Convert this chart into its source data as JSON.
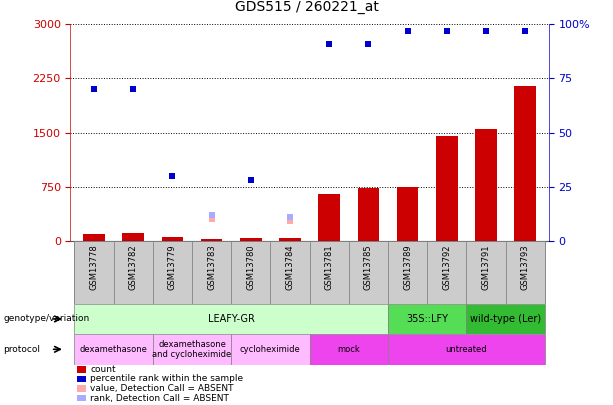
{
  "title": "GDS515 / 260221_at",
  "samples": [
    "GSM13778",
    "GSM13782",
    "GSM13779",
    "GSM13783",
    "GSM13780",
    "GSM13784",
    "GSM13781",
    "GSM13785",
    "GSM13789",
    "GSM13792",
    "GSM13791",
    "GSM13793"
  ],
  "count_values": [
    90,
    110,
    55,
    25,
    45,
    40,
    650,
    730,
    750,
    1450,
    1550,
    2150
  ],
  "percentile_values": [
    70,
    70,
    30,
    null,
    28,
    null,
    91,
    91,
    97,
    97,
    97,
    97
  ],
  "percentile_absent": [
    false,
    false,
    false,
    true,
    false,
    true,
    false,
    false,
    false,
    false,
    false,
    false
  ],
  "value_absent": [
    null,
    null,
    null,
    310,
    null,
    280,
    null,
    null,
    null,
    null,
    null,
    null
  ],
  "rank_absent": [
    null,
    null,
    null,
    12,
    null,
    11,
    null,
    null,
    null,
    null,
    null,
    null
  ],
  "ylim_left": [
    0,
    3000
  ],
  "ylim_right": [
    0,
    100
  ],
  "yticks_left": [
    0,
    750,
    1500,
    2250,
    3000
  ],
  "yticks_right": [
    0,
    25,
    50,
    75,
    100
  ],
  "genotype_groups": [
    {
      "label": "LEAFY-GR",
      "start": 0,
      "end": 8,
      "color": "#ccffcc"
    },
    {
      "label": "35S::LFY",
      "start": 8,
      "end": 10,
      "color": "#55dd55"
    },
    {
      "label": "wild-type (Ler)",
      "start": 10,
      "end": 12,
      "color": "#33bb33"
    }
  ],
  "protocol_groups": [
    {
      "label": "dexamethasone",
      "start": 0,
      "end": 2,
      "color": "#ffbbff"
    },
    {
      "label": "dexamethasone\nand cycloheximide",
      "start": 2,
      "end": 4,
      "color": "#ffbbff"
    },
    {
      "label": "cycloheximide",
      "start": 4,
      "end": 6,
      "color": "#ffbbff"
    },
    {
      "label": "mock",
      "start": 6,
      "end": 8,
      "color": "#ee44ee"
    },
    {
      "label": "untreated",
      "start": 8,
      "end": 12,
      "color": "#ee44ee"
    }
  ],
  "bar_color": "#cc0000",
  "dot_color": "#0000cc",
  "absent_value_color": "#ffaaaa",
  "absent_rank_color": "#aaaaff",
  "grid_color": "#555555",
  "left_axis_color": "#cc0000",
  "right_axis_color": "#0000cc"
}
